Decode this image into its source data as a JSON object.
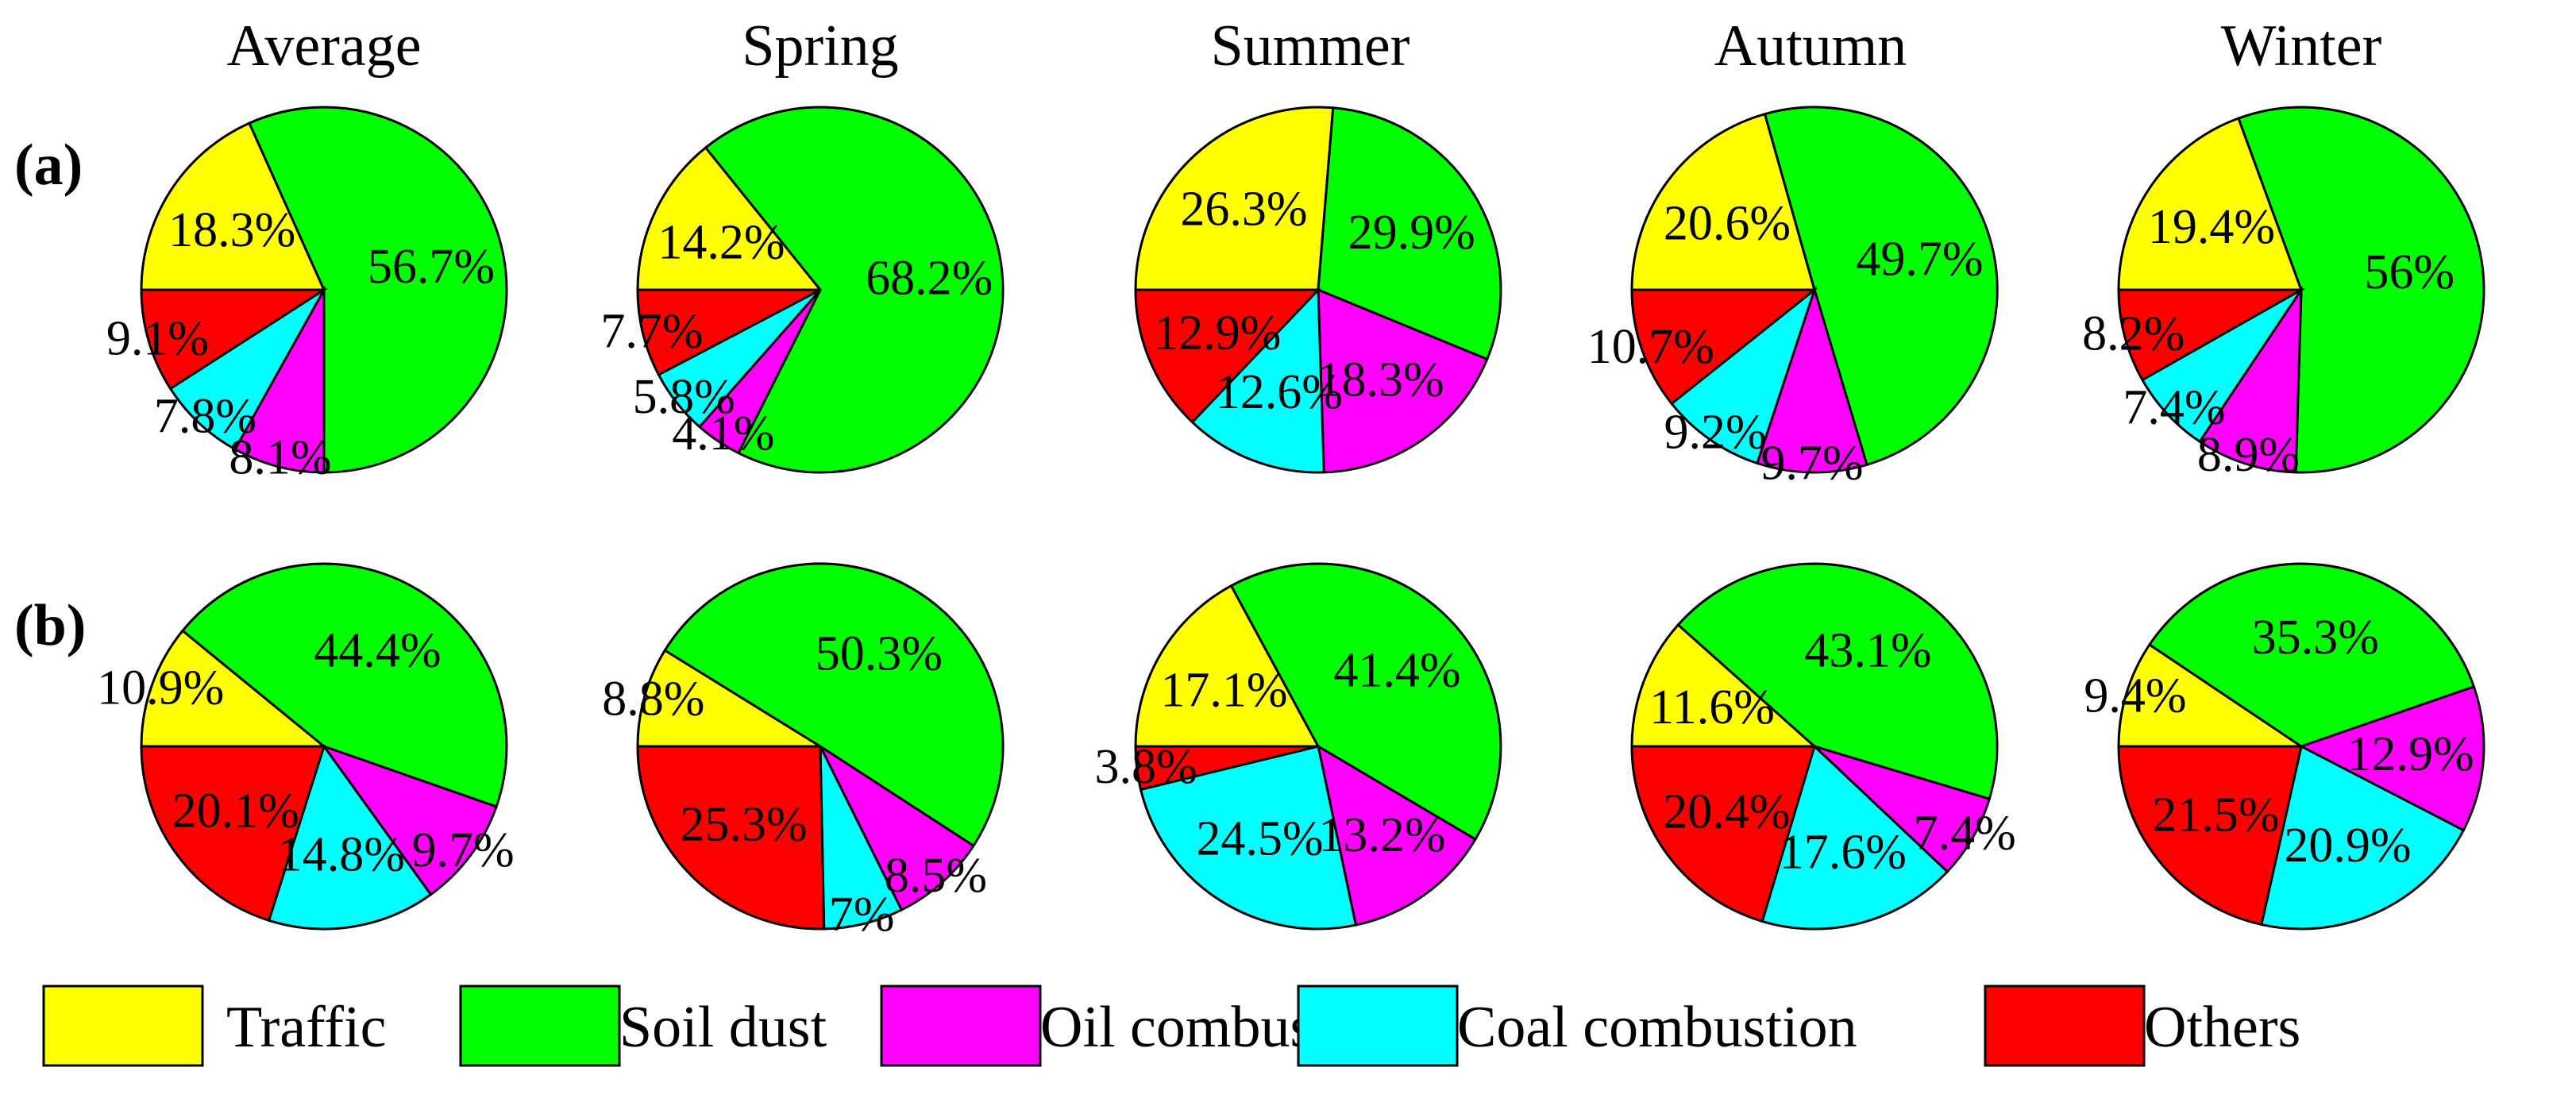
{
  "colors": {
    "Traffic": "#ffff00",
    "Soil dust": "#00ff00",
    "Oil combustion": "#ff00ff",
    "Coal combustion": "#00ffff",
    "Others": "#ff0000"
  },
  "chart_data": {
    "type": "pie",
    "columns": [
      "Average",
      "Spring",
      "Summer",
      "Autumn",
      "Winter"
    ],
    "rows": [
      {
        "label": "(a)",
        "pies": [
          {
            "season": "Average",
            "slices": [
              {
                "category": "Soil dust",
                "value": 56.7,
                "label": "56.7%"
              },
              {
                "category": "Oil combustion",
                "value": 8.1,
                "label": "8.1%"
              },
              {
                "category": "Coal combustion",
                "value": 7.8,
                "label": "7.8%"
              },
              {
                "category": "Others",
                "value": 9.1,
                "label": "9.1%"
              },
              {
                "category": "Traffic",
                "value": 18.3,
                "label": "18.3%"
              }
            ]
          },
          {
            "season": "Spring",
            "slices": [
              {
                "category": "Soil dust",
                "value": 68.2,
                "label": "68.2%"
              },
              {
                "category": "Oil combustion",
                "value": 4.1,
                "label": "4.1%"
              },
              {
                "category": "Coal combustion",
                "value": 5.8,
                "label": "5.8%"
              },
              {
                "category": "Others",
                "value": 7.7,
                "label": "7.7%"
              },
              {
                "category": "Traffic",
                "value": 14.2,
                "label": "14.2%"
              }
            ]
          },
          {
            "season": "Summer",
            "slices": [
              {
                "category": "Soil dust",
                "value": 29.9,
                "label": "29.9%"
              },
              {
                "category": "Oil combustion",
                "value": 18.3,
                "label": "18.3%"
              },
              {
                "category": "Coal combustion",
                "value": 12.6,
                "label": "12.6%"
              },
              {
                "category": "Others",
                "value": 12.9,
                "label": "12.9%"
              },
              {
                "category": "Traffic",
                "value": 26.3,
                "label": "26.3%"
              }
            ]
          },
          {
            "season": "Autumn",
            "slices": [
              {
                "category": "Soil dust",
                "value": 49.7,
                "label": "49.7%"
              },
              {
                "category": "Oil combustion",
                "value": 9.7,
                "label": "9.7%"
              },
              {
                "category": "Coal combustion",
                "value": 9.2,
                "label": "9.2%"
              },
              {
                "category": "Others",
                "value": 10.7,
                "label": "10.7%"
              },
              {
                "category": "Traffic",
                "value": 20.6,
                "label": "20.6%"
              }
            ]
          },
          {
            "season": "Winter",
            "slices": [
              {
                "category": "Soil dust",
                "value": 56,
                "label": "56%"
              },
              {
                "category": "Oil combustion",
                "value": 8.9,
                "label": "8.9%"
              },
              {
                "category": "Coal combustion",
                "value": 7.4,
                "label": "7.4%"
              },
              {
                "category": "Others",
                "value": 8.2,
                "label": "8.2%"
              },
              {
                "category": "Traffic",
                "value": 19.4,
                "label": "19.4%"
              }
            ]
          }
        ]
      },
      {
        "label": "(b)",
        "pies": [
          {
            "season": "Average",
            "slices": [
              {
                "category": "Soil dust",
                "value": 44.4,
                "label": "44.4%"
              },
              {
                "category": "Oil combustion",
                "value": 9.7,
                "label": "9.7%"
              },
              {
                "category": "Coal combustion",
                "value": 14.8,
                "label": "14.8%"
              },
              {
                "category": "Others",
                "value": 20.1,
                "label": "20.1%"
              },
              {
                "category": "Traffic",
                "value": 10.9,
                "label": "10.9%"
              }
            ]
          },
          {
            "season": "Spring",
            "slices": [
              {
                "category": "Soil dust",
                "value": 50.3,
                "label": "50.3%"
              },
              {
                "category": "Oil combustion",
                "value": 8.5,
                "label": "8.5%"
              },
              {
                "category": "Coal combustion",
                "value": 7,
                "label": "7%"
              },
              {
                "category": "Others",
                "value": 25.3,
                "label": "25.3%"
              },
              {
                "category": "Traffic",
                "value": 8.8,
                "label": "8.8%"
              }
            ]
          },
          {
            "season": "Summer",
            "slices": [
              {
                "category": "Soil dust",
                "value": 41.4,
                "label": "41.4%"
              },
              {
                "category": "Oil combustion",
                "value": 13.2,
                "label": "13.2%"
              },
              {
                "category": "Coal combustion",
                "value": 24.5,
                "label": "24.5%"
              },
              {
                "category": "Others",
                "value": 3.8,
                "label": "3.8%"
              },
              {
                "category": "Traffic",
                "value": 17.1,
                "label": "17.1%"
              }
            ]
          },
          {
            "season": "Autumn",
            "slices": [
              {
                "category": "Soil dust",
                "value": 43.1,
                "label": "43.1%"
              },
              {
                "category": "Oil combustion",
                "value": 7.4,
                "label": "7.4%"
              },
              {
                "category": "Coal combustion",
                "value": 17.6,
                "label": "17.6%"
              },
              {
                "category": "Others",
                "value": 20.4,
                "label": "20.4%"
              },
              {
                "category": "Traffic",
                "value": 11.6,
                "label": "11.6%"
              }
            ]
          },
          {
            "season": "Winter",
            "slices": [
              {
                "category": "Soil dust",
                "value": 35.3,
                "label": "35.3%"
              },
              {
                "category": "Oil combustion",
                "value": 12.9,
                "label": "12.9%"
              },
              {
                "category": "Coal combustion",
                "value": 20.9,
                "label": "20.9%"
              },
              {
                "category": "Others",
                "value": 21.5,
                "label": "21.5%"
              },
              {
                "category": "Traffic",
                "value": 9.4,
                "label": "9.4%"
              }
            ]
          }
        ]
      }
    ],
    "legend": [
      "Traffic",
      "Soil dust",
      "Oil combustion",
      "Coal combustion",
      "Others"
    ],
    "legend_position": "bottom"
  }
}
